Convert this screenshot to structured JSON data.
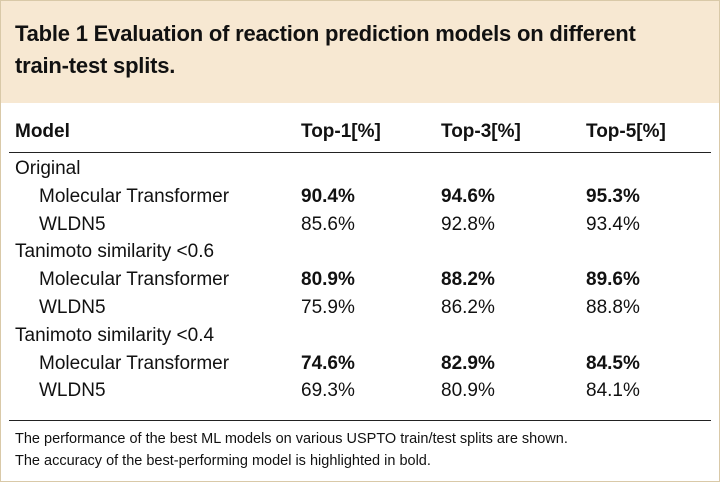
{
  "header": {
    "title_lines": [
      "Table 1 Evaluation of reaction prediction models on different",
      "train-test splits."
    ]
  },
  "table": {
    "columns": [
      "Model",
      "Top-1[%]",
      "Top-3[%]",
      "Top-5[%]"
    ],
    "groups": [
      {
        "label": "Original",
        "rows": [
          {
            "model": "Molecular Transformer",
            "values": [
              "90.4%",
              "94.6%",
              "95.3%"
            ],
            "bold": true
          },
          {
            "model": "WLDN5",
            "values": [
              "85.6%",
              "92.8%",
              "93.4%"
            ],
            "bold": false
          }
        ]
      },
      {
        "label": "Tanimoto similarity <0.6",
        "rows": [
          {
            "model": "Molecular Transformer",
            "values": [
              "80.9%",
              "88.2%",
              "89.6%"
            ],
            "bold": true
          },
          {
            "model": "WLDN5",
            "values": [
              "75.9%",
              "86.2%",
              "88.8%"
            ],
            "bold": false
          }
        ]
      },
      {
        "label": "Tanimoto similarity <0.4",
        "rows": [
          {
            "model": "Molecular Transformer",
            "values": [
              "74.6%",
              "82.9%",
              "84.5%"
            ],
            "bold": true
          },
          {
            "model": "WLDN5",
            "values": [
              "69.3%",
              "80.9%",
              "84.1%"
            ],
            "bold": false
          }
        ]
      }
    ]
  },
  "footnote": {
    "lines": [
      "The performance of the best ML models on various USPTO train/test splits are shown.",
      "The accuracy of the best-performing model is highlighted in bold."
    ]
  }
}
